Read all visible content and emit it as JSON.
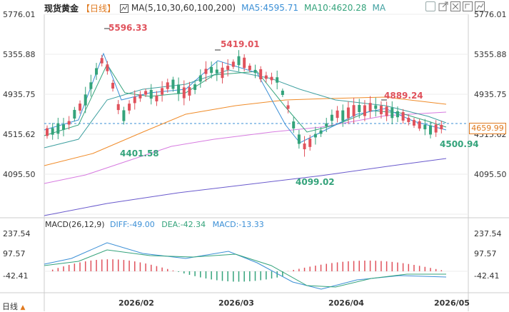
{
  "header": {
    "title": "现货黄金",
    "period": "【日线】",
    "ma_label": "MA(5,10,30,60,100,200)",
    "ma5": "MA5:4595.71",
    "ma10": "MA10:4620.28",
    "ma_more": "MA"
  },
  "price_axis_left": [
    "5776.01",
    "5355.88",
    "4935.75",
    "4515.62",
    "4095.50"
  ],
  "price_axis_right": [
    "5776.01",
    "5355.88",
    "4935.75",
    "4515.62",
    "4095.50"
  ],
  "current_price": "4659.99",
  "annotations": {
    "high1": "5596.33",
    "low1": "4401.58",
    "high2": "5419.01",
    "low2": "4099.02",
    "high3": "4889.24",
    "low3": "4500.94"
  },
  "macd": {
    "label": "MACD(26,12,9)",
    "diff": "DIFF:-49.00",
    "dea": "DEA:-42.34",
    "macd": "MACD:-13.33",
    "axis_left": [
      "237.54",
      "97.57",
      "-42.41"
    ],
    "axis_right": [
      "237.54",
      "97.57",
      "-42.41"
    ]
  },
  "x_axis": [
    "2026/02",
    "2026/03",
    "2026/04",
    "2026/05"
  ],
  "footer": {
    "period_selector": "日线"
  },
  "colors": {
    "up": "#e0525c",
    "down": "#34a37b",
    "ma5": "#3b8fd6",
    "ma10": "#34a37b",
    "ma30": "#3fa0a0",
    "ma60": "#f08c2a",
    "ma100": "#d77be0",
    "ma200": "#6a5acd",
    "accent": "#e07a1f"
  },
  "icons": [
    "square-frame-icon",
    "open-window-icon",
    "close-icon",
    "screenshot-icon",
    "chart-style-icon"
  ]
}
